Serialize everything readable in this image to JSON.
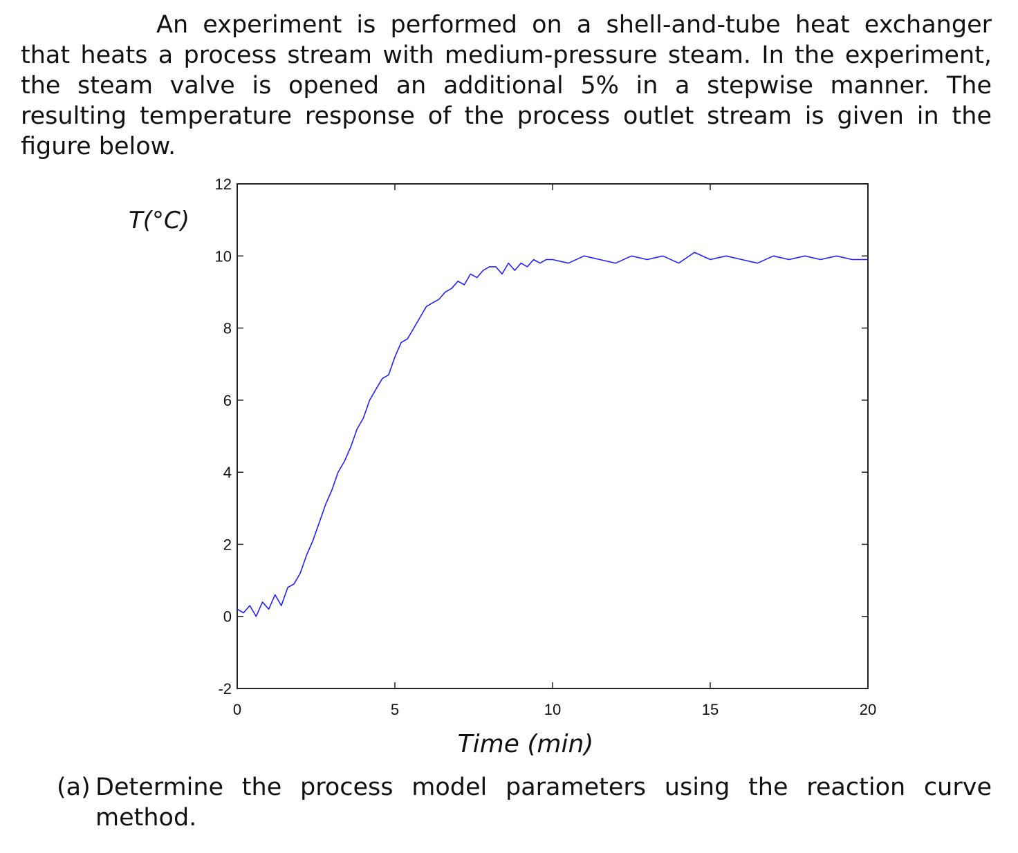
{
  "problem": {
    "text": "An experiment is performed on a shell-and-tube heat exchanger that heats a process stream with medium-pressure steam. In the experiment, the steam valve is opened an additional 5% in a stepwise manner. The resulting temperature response of the process outlet stream is given in the figure below."
  },
  "question": {
    "number": "(a)",
    "text_line1": "Determine the process model parameters using the reaction curve",
    "text_line2": "method."
  },
  "chart_data": {
    "type": "line",
    "ylabel": "T(°C)",
    "xlabel": "Time (min)",
    "xlim": [
      0,
      20
    ],
    "ylim": [
      -2,
      12
    ],
    "xticks": [
      "0",
      "5",
      "10",
      "15",
      "20"
    ],
    "yticks": [
      "-2",
      "0",
      "2",
      "4",
      "6",
      "8",
      "10",
      "12"
    ],
    "grid": false,
    "line_color": "#1f1fff",
    "series": [
      {
        "x": [
          0,
          0.2,
          0.4,
          0.6,
          0.8,
          1.0,
          1.2,
          1.4,
          1.6,
          1.8,
          2.0,
          2.2,
          2.4,
          2.6,
          2.8,
          3.0,
          3.2,
          3.4,
          3.6,
          3.8,
          4.0,
          4.2,
          4.4,
          4.6,
          4.8,
          5.0,
          5.2,
          5.4,
          5.6,
          5.8,
          6.0,
          6.2,
          6.4,
          6.6,
          6.8,
          7.0,
          7.2,
          7.4,
          7.6,
          7.8,
          8.0,
          8.2,
          8.4,
          8.6,
          8.8,
          9.0,
          9.2,
          9.4,
          9.6,
          9.8,
          10.0,
          10.5,
          11.0,
          11.5,
          12.0,
          12.5,
          13.0,
          13.5,
          14.0,
          14.5,
          15.0,
          15.5,
          16.0,
          16.5,
          17.0,
          17.5,
          18.0,
          18.5,
          19.0,
          19.5,
          20.0
        ],
        "values": [
          0.2,
          0.1,
          0.3,
          0.0,
          0.4,
          0.2,
          0.6,
          0.3,
          0.8,
          0.9,
          1.2,
          1.7,
          2.1,
          2.6,
          3.1,
          3.5,
          4.0,
          4.3,
          4.7,
          5.2,
          5.5,
          6.0,
          6.3,
          6.6,
          6.7,
          7.2,
          7.6,
          7.7,
          8.0,
          8.3,
          8.6,
          8.7,
          8.8,
          9.0,
          9.1,
          9.3,
          9.2,
          9.5,
          9.4,
          9.6,
          9.7,
          9.7,
          9.5,
          9.8,
          9.6,
          9.8,
          9.7,
          9.9,
          9.8,
          9.9,
          9.9,
          9.8,
          10.0,
          9.9,
          9.8,
          10.0,
          9.9,
          10.0,
          9.8,
          10.1,
          9.9,
          10.0,
          9.9,
          9.8,
          10.0,
          9.9,
          10.0,
          9.9,
          10.0,
          9.9,
          9.9
        ]
      }
    ]
  }
}
